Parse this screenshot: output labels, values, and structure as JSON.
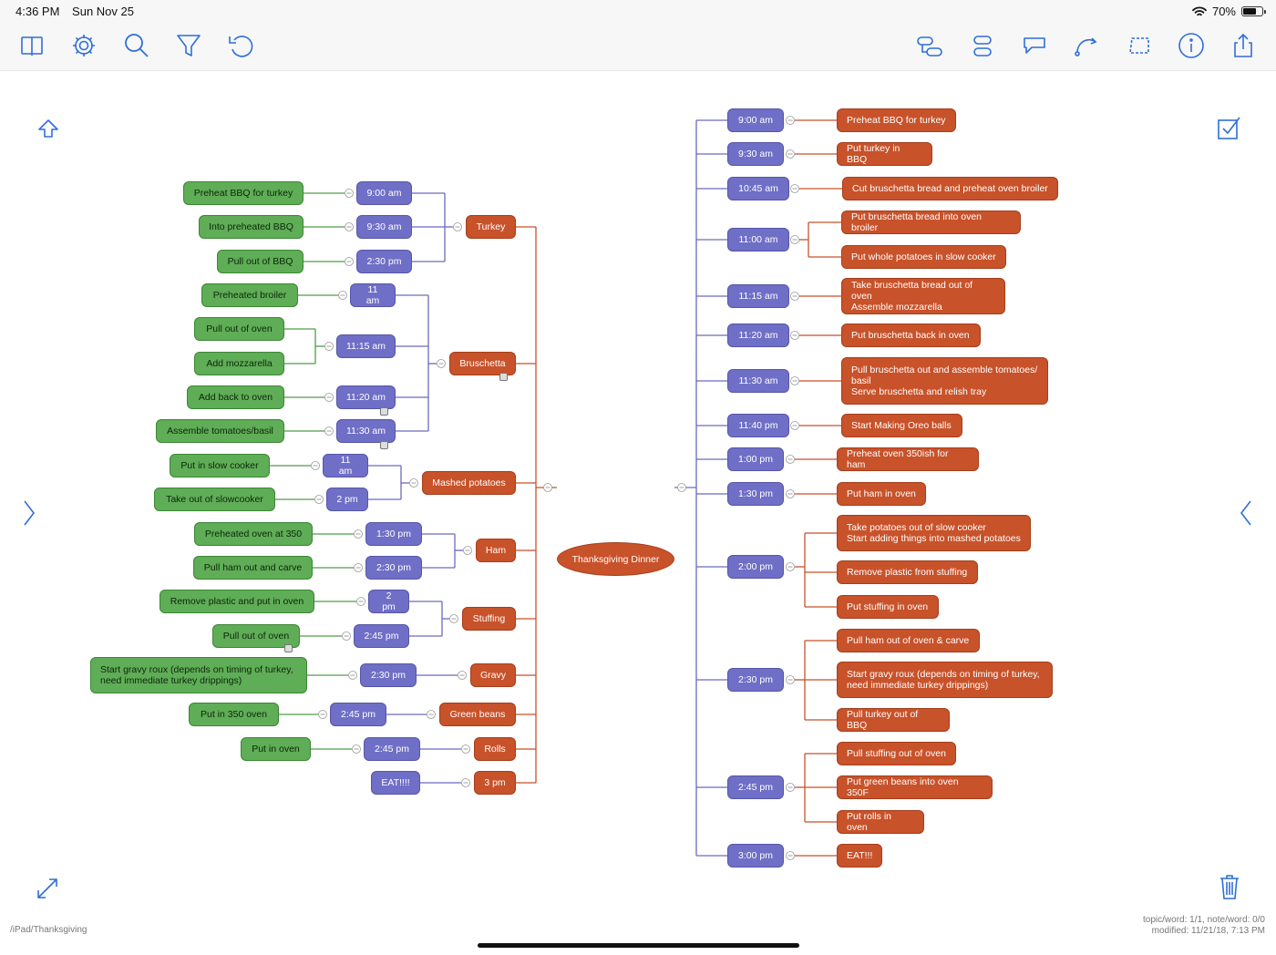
{
  "status_bar": {
    "time": "4:36 PM",
    "date": "Sun Nov 25",
    "battery": "70%",
    "battery_level": 0.7
  },
  "toolbar": {
    "left_icons": [
      "book-icon",
      "gear-icon",
      "search-icon",
      "filter-icon",
      "undo-icon"
    ],
    "right_icons": [
      "subtopic-icon",
      "sibling-topic-icon",
      "callout-icon",
      "relationship-icon",
      "boundary-icon",
      "info-icon",
      "share-icon"
    ]
  },
  "mindmap": {
    "central_topic": "Thanksgiving Dinner",
    "left_branches": [
      {
        "label": "Turkey",
        "times": [
          {
            "time": "9:00 am",
            "tasks": [
              "Preheat BBQ for turkey"
            ]
          },
          {
            "time": "9:30 am",
            "tasks": [
              "Into preheated BBQ"
            ]
          },
          {
            "time": "2:30 pm",
            "tasks": [
              "Pull out of BBQ"
            ]
          }
        ]
      },
      {
        "label": "Bruschetta",
        "times": [
          {
            "time": "11 am",
            "tasks": [
              "Preheated broiler"
            ]
          },
          {
            "time": "11:15 am",
            "tasks": [
              "Pull out of oven",
              "Add mozzarella"
            ]
          },
          {
            "time": "11:20 am",
            "tasks": [
              "Add back to oven"
            ]
          },
          {
            "time": "11:30 am",
            "tasks": [
              "Assemble tomatoes/basil"
            ]
          }
        ]
      },
      {
        "label": "Mashed potatoes",
        "times": [
          {
            "time": "11 am",
            "tasks": [
              "Put in slow cooker"
            ]
          },
          {
            "time": "2 pm",
            "tasks": [
              "Take out of slowcooker"
            ]
          }
        ]
      },
      {
        "label": "Ham",
        "times": [
          {
            "time": "1:30 pm",
            "tasks": [
              "Preheated oven at 350"
            ]
          },
          {
            "time": "2:30 pm",
            "tasks": [
              "Pull ham out and carve"
            ]
          }
        ]
      },
      {
        "label": "Stuffing",
        "times": [
          {
            "time": "2 pm",
            "tasks": [
              "Remove plastic and put in oven"
            ]
          },
          {
            "time": "2:45 pm",
            "tasks": [
              "Pull out of oven"
            ]
          }
        ]
      },
      {
        "label": "Gravy",
        "times": [
          {
            "time": "2:30 pm",
            "tasks": [
              "Start gravy roux (depends on timing of turkey,\nneed immediate turkey drippings)"
            ]
          }
        ]
      },
      {
        "label": "Green beans",
        "times": [
          {
            "time": "2:45 pm",
            "tasks": [
              "Put in 350 oven"
            ]
          }
        ]
      },
      {
        "label": "Rolls",
        "times": [
          {
            "time": "2:45 pm",
            "tasks": [
              "Put in oven"
            ]
          }
        ]
      },
      {
        "label": "3 pm",
        "times": [
          {
            "time": "EAT!!!!",
            "tasks": []
          }
        ]
      }
    ],
    "right_branches": [
      {
        "time": "9:00 am",
        "tasks": [
          "Preheat BBQ for turkey"
        ]
      },
      {
        "time": "9:30 am",
        "tasks": [
          "Put turkey in BBQ"
        ]
      },
      {
        "time": "10:45 am",
        "tasks": [
          "Cut bruschetta bread and preheat oven broiler"
        ]
      },
      {
        "time": "11:00 am",
        "tasks": [
          "Put bruschetta bread into oven broiler",
          "Put whole potatoes in slow cooker"
        ]
      },
      {
        "time": "11:15 am",
        "tasks": [
          "Take bruschetta bread out of oven\nAssemble mozzarella"
        ]
      },
      {
        "time": "11:20 am",
        "tasks": [
          "Put bruschetta back in oven"
        ]
      },
      {
        "time": "11:30 am",
        "tasks": [
          "Pull bruschetta out and assemble tomatoes/\nbasil\nServe bruschetta and relish tray"
        ]
      },
      {
        "time": "11:40 pm",
        "tasks": [
          "Start Making Oreo balls"
        ]
      },
      {
        "time": "1:00 pm",
        "tasks": [
          "Preheat oven 350ish for ham"
        ]
      },
      {
        "time": "1:30 pm",
        "tasks": [
          "Put ham in oven"
        ]
      },
      {
        "time": "2:00 pm",
        "tasks": [
          "Take potatoes out of slow cooker\nStart adding things into mashed potatoes",
          "Remove plastic from stuffing",
          "Put stuffing in oven"
        ]
      },
      {
        "time": "2:30 pm",
        "tasks": [
          "Pull ham out of oven & carve",
          "Start gravy roux (depends on timing of turkey,\nneed immediate turkey drippings)",
          "Pull turkey out of BBQ"
        ]
      },
      {
        "time": "2:45 pm",
        "tasks": [
          "Pull stuffing out of oven",
          "Put green beans into oven 350F",
          "Put rolls in oven"
        ]
      },
      {
        "time": "3:00 pm",
        "tasks": [
          "EAT!!!"
        ]
      }
    ]
  },
  "footer": {
    "path": "/iPad/Thanksgiving",
    "stats_line1": "topic/word: 1/1, note/word: 0/0",
    "stats_line2": "modified: 11/21/18, 7:13 PM"
  },
  "colors": {
    "task": "#5fad56",
    "time": "#6f6fc7",
    "topic": "#c8522a",
    "accent": "#2f6fd6"
  }
}
